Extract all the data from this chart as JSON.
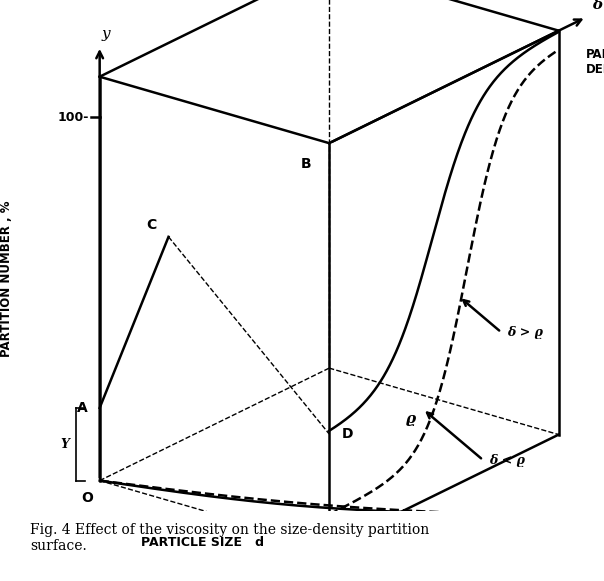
{
  "caption": "Fig. 4 Effect of the viscosity on the size-density partition\nsurface.",
  "ylabel": "PARTITION NUMBER , %",
  "xlabel_bottom": "PARTICLE SIZE   d",
  "label_delta": "δ",
  "label_particle_density": "PARTICLE\nDENSITY",
  "label_delta_gt_rho": "δ > ϱ",
  "label_delta_lt_rho": "δ < ϱ",
  "label_rho": "ϱ",
  "label_y_axis": "y",
  "label_100": "100-",
  "label_O": "O",
  "label_A": "A",
  "label_B": "B",
  "label_C": "C",
  "label_D": "D",
  "label_y_bracket": "Y",
  "bg_color": "#ffffff",
  "line_color": "#000000",
  "figsize": [
    6.04,
    5.81
  ],
  "dpi": 100
}
